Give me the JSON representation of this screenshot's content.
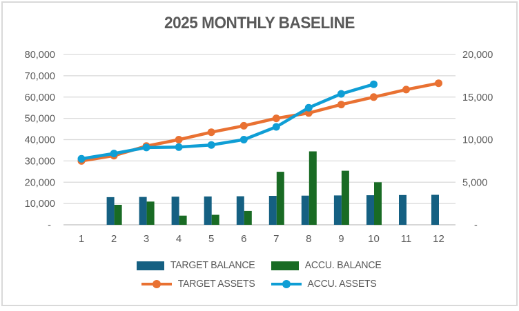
{
  "window": {
    "background": "#ffffff",
    "frame_border_color": "#d9d9d9"
  },
  "chart_data": {
    "type": "combo",
    "title": "2025 MONTHLY BASELINE",
    "categories": [
      "1",
      "2",
      "3",
      "4",
      "5",
      "6",
      "7",
      "8",
      "9",
      "10",
      "11",
      "12"
    ],
    "series": [
      {
        "name": "TARGET BALANCE",
        "type": "bar",
        "color": "#156082",
        "axis": "left",
        "values": [
          null,
          13000,
          13100,
          13200,
          13300,
          13400,
          13600,
          13700,
          13800,
          13900,
          14000,
          14100
        ]
      },
      {
        "name": "ACCU. BALANCE",
        "type": "bar",
        "color": "#196B24",
        "axis": "left",
        "values": [
          null,
          9400,
          10900,
          4300,
          4700,
          6500,
          24900,
          34500,
          25400,
          20000,
          null,
          null
        ]
      },
      {
        "name": "TARGET ASSETS",
        "type": "line",
        "color": "#E97132",
        "axis": "left",
        "values": [
          30000,
          32500,
          37000,
          40000,
          43500,
          46500,
          50000,
          52500,
          56500,
          60000,
          63500,
          66500
        ]
      },
      {
        "name": "ACCU. ASSETS",
        "type": "line",
        "color": "#0F9ED5",
        "axis": "left",
        "values": [
          31000,
          33500,
          36300,
          36500,
          37500,
          40000,
          46000,
          55000,
          61500,
          66000,
          null,
          null
        ]
      }
    ],
    "y_axis_left": {
      "min": 0,
      "max": 80000,
      "step": 10000,
      "tick_labels": [
        "-",
        "10,000",
        "20,000",
        "30,000",
        "40,000",
        "50,000",
        "60,000",
        "70,000",
        "80,000"
      ]
    },
    "y_axis_right": {
      "min": 0,
      "max": 20000,
      "step": 5000,
      "tick_labels": [
        "-",
        "5,000",
        "10,000",
        "15,000",
        "20,000"
      ]
    },
    "x_axis": {
      "tick_labels": [
        "1",
        "2",
        "3",
        "4",
        "5",
        "6",
        "7",
        "8",
        "9",
        "10",
        "11",
        "12"
      ]
    },
    "grid": "horizontal",
    "legend_position": "bottom",
    "colors": {
      "gridline": "#d9d9d9",
      "axis_line": "#bfbfbf",
      "tick_text": "#595959",
      "title_text": "#595959"
    }
  }
}
